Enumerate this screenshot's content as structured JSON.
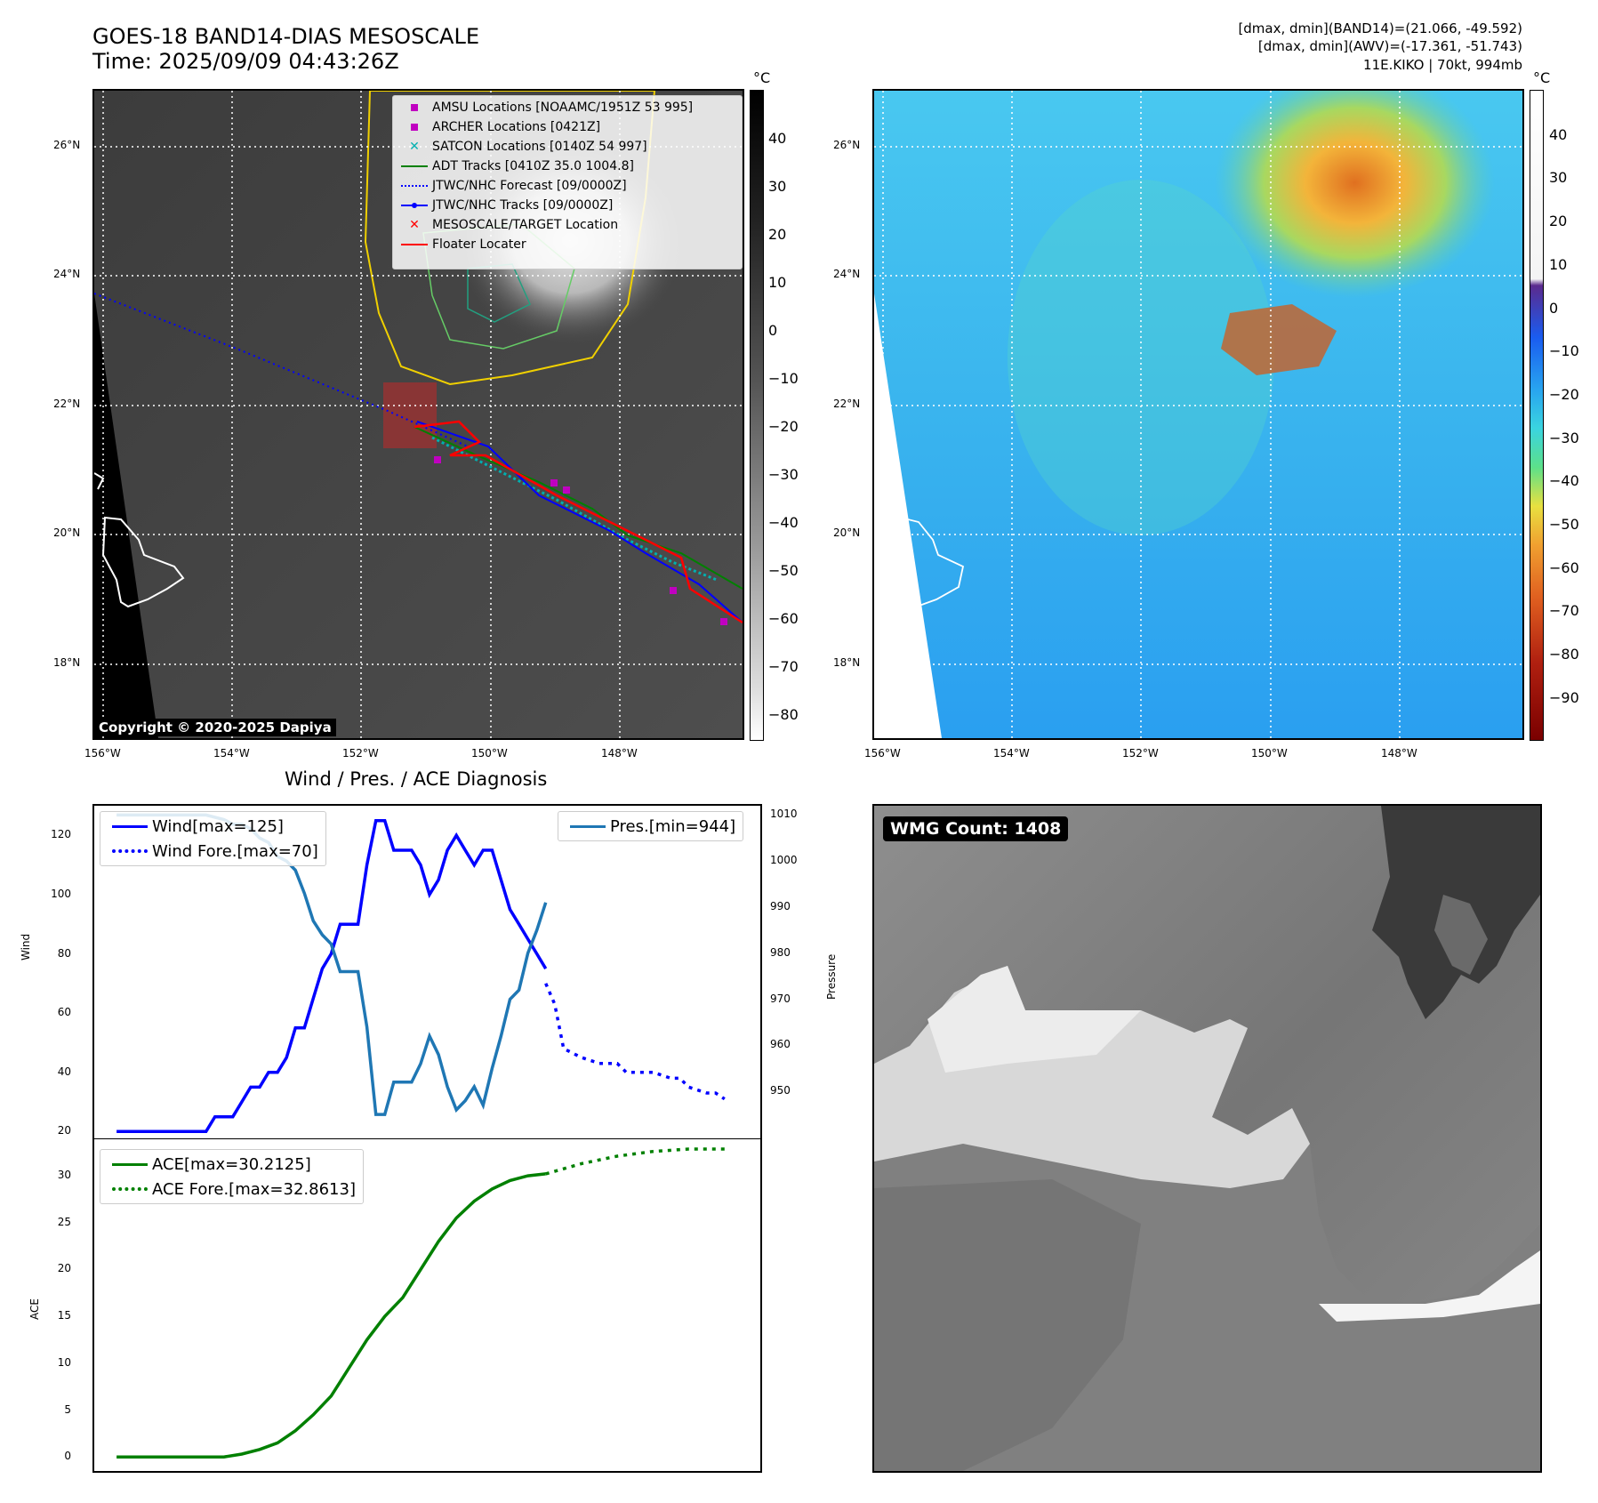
{
  "header": {
    "title": "GOES-18 BAND14-DIAS MESOSCALE",
    "time": "Time: 2025/09/09 04:43:26Z",
    "stats_band14": "[dmax, dmin](BAND14)=(21.066, -49.592)",
    "stats_awv": "[dmax, dmin](AWV)=(-17.361, -51.743)",
    "storm": "11E.KIKO | 70kt, 994mb"
  },
  "maps": {
    "lat_labels": [
      "26°N",
      "24°N",
      "22°N",
      "20°N",
      "18°N"
    ],
    "lon_labels": [
      "156°W",
      "154°W",
      "152°W",
      "150°W",
      "148°W"
    ],
    "lat_values": [
      26,
      24,
      22,
      20,
      18
    ],
    "lon_values": [
      -156,
      -154,
      -152,
      -150,
      -148
    ],
    "colorbar_unit": "°C",
    "copyright": "Copyright © 2020-2025 Dapiya",
    "left_colorbar_ticks": [
      "40",
      "30",
      "20",
      "10",
      "0",
      "−10",
      "−20",
      "−30",
      "−40",
      "−50",
      "−60",
      "−70",
      "−80"
    ],
    "right_colorbar_ticks": [
      "40",
      "30",
      "20",
      "10",
      "0",
      "−10",
      "−20",
      "−30",
      "−40",
      "−50",
      "−60",
      "−70",
      "−80",
      "−90"
    ],
    "legend": [
      {
        "label": "AMSU Locations [NOAAMC/1951Z 53 995]",
        "symbol": "square",
        "color": "#c000c0"
      },
      {
        "label": "ARCHER Locations [0421Z]",
        "symbol": "square",
        "color": "#c000c0"
      },
      {
        "label": "SATCON Locations [0140Z 54 997]",
        "symbol": "x",
        "color": "#00b0b0"
      },
      {
        "label": "ADT Tracks [0410Z 35.0 1004.8]",
        "symbol": "line",
        "color": "#008000"
      },
      {
        "label": "JTWC/NHC Forecast [09/0000Z]",
        "symbol": "dotted",
        "color": "#0000ff"
      },
      {
        "label": "JTWC/NHC Tracks [09/0000Z]",
        "symbol": "line-dot",
        "color": "#0000ff"
      },
      {
        "label": "MESOSCALE/TARGET Location",
        "symbol": "x",
        "color": "#ff0000"
      },
      {
        "label": "Floater Locater",
        "symbol": "line",
        "color": "#ff0000"
      }
    ],
    "wmg_count": "WMG Count: 1408"
  },
  "chart_data": [
    {
      "type": "line",
      "title": "Wind / Pres. / ACE Diagnosis",
      "ylabel": "Wind",
      "ylabel_right": "Pressure",
      "ylim": [
        18,
        130
      ],
      "ylim_right": [
        940,
        1012
      ],
      "yticks": [
        20,
        40,
        60,
        80,
        100,
        120
      ],
      "yticks_right": [
        950,
        960,
        970,
        980,
        990,
        1000,
        1010
      ],
      "legend_left": [
        "Wind[max=125]",
        "Wind Fore.[max=70]"
      ],
      "legend_right": [
        "Pres.[min=944]"
      ],
      "series": [
        {
          "name": "Wind[max=125]",
          "axis": "left",
          "style": "solid",
          "color": "#0000ff",
          "x": [
            0,
            1,
            2,
            3,
            4,
            5,
            6,
            7,
            8,
            9,
            10,
            11,
            12,
            13,
            14,
            15,
            16,
            17,
            18,
            19,
            20,
            21,
            22,
            23,
            24,
            25,
            26,
            27,
            28,
            29,
            30,
            31,
            32,
            33,
            34,
            35,
            36,
            37,
            38,
            39,
            40,
            41,
            42,
            43,
            44,
            45,
            46,
            47,
            48
          ],
          "values": [
            20,
            20,
            20,
            20,
            20,
            20,
            20,
            20,
            20,
            20,
            20,
            25,
            25,
            25,
            30,
            35,
            35,
            40,
            40,
            45,
            55,
            55,
            65,
            75,
            80,
            90,
            90,
            90,
            110,
            125,
            125,
            115,
            115,
            115,
            110,
            100,
            105,
            115,
            120,
            115,
            110,
            115,
            115,
            105,
            95,
            90,
            85,
            80,
            75
          ]
        },
        {
          "name": "Wind Fore.[max=70]",
          "axis": "left",
          "style": "dotted",
          "color": "#0000ff",
          "x": [
            48,
            49,
            50,
            52,
            54,
            56,
            57,
            58,
            60,
            62,
            63,
            64,
            66,
            67,
            68
          ],
          "values": [
            70,
            63,
            48,
            45,
            43,
            43,
            40,
            40,
            40,
            38,
            38,
            35,
            33,
            33,
            31
          ]
        },
        {
          "name": "Pres.[min=944]",
          "axis": "right",
          "style": "solid",
          "color": "#1f77b4",
          "x": [
            0,
            2,
            4,
            6,
            8,
            10,
            12,
            13,
            14,
            15,
            16,
            17,
            18,
            19,
            20,
            21,
            22,
            23,
            24,
            25,
            26,
            27,
            28,
            29,
            30,
            31,
            32,
            33,
            34,
            35,
            36,
            37,
            38,
            39,
            40,
            41,
            42,
            43,
            44,
            45,
            46,
            47,
            48
          ],
          "values": [
            1010,
            1010,
            1010,
            1010,
            1010,
            1010,
            1009,
            1008,
            1008,
            1007,
            1005,
            1004,
            1001,
            1000,
            998,
            993,
            987,
            984,
            982,
            976,
            976,
            976,
            964,
            945,
            945,
            952,
            952,
            952,
            956,
            962,
            958,
            951,
            946,
            948,
            951,
            947,
            955,
            962,
            970,
            972,
            980,
            985,
            991
          ]
        }
      ]
    },
    {
      "type": "line",
      "ylabel": "ACE",
      "ylim": [
        -1.5,
        34
      ],
      "yticks": [
        0,
        5,
        10,
        15,
        20,
        25,
        30
      ],
      "series": [
        {
          "name": "ACE[max=30.2125]",
          "style": "solid",
          "color": "#008000",
          "x": [
            0,
            4,
            8,
            12,
            14,
            16,
            18,
            20,
            22,
            24,
            26,
            28,
            30,
            32,
            34,
            36,
            38,
            40,
            42,
            44,
            46,
            48
          ],
          "values": [
            0,
            0,
            0,
            0,
            0.3,
            0.8,
            1.5,
            2.8,
            4.5,
            6.5,
            9.5,
            12.5,
            15,
            17,
            20,
            23,
            25.5,
            27.3,
            28.6,
            29.5,
            30.0,
            30.2125
          ]
        },
        {
          "name": "ACE Fore.[max=32.8613]",
          "style": "dotted",
          "color": "#008000",
          "x": [
            48,
            52,
            56,
            60,
            64,
            68
          ],
          "values": [
            30.2125,
            31.3,
            32.1,
            32.6,
            32.86,
            32.8613
          ]
        }
      ]
    }
  ]
}
